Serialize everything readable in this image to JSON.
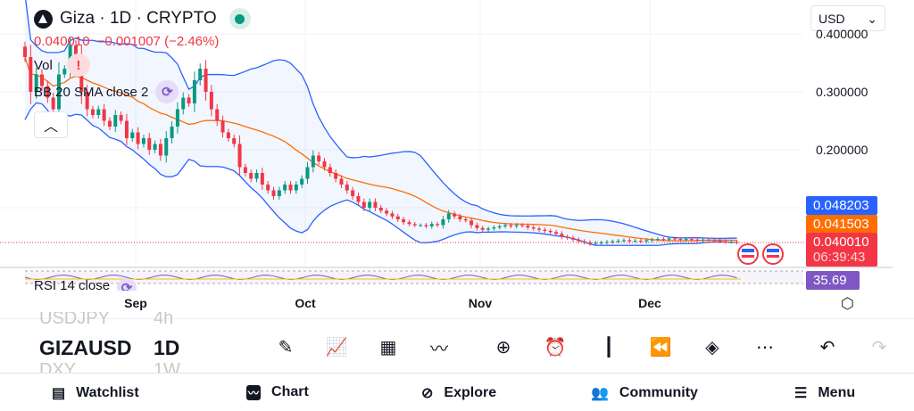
{
  "header": {
    "title": "Giza · 1D · CRYPTO",
    "status": "live",
    "currency": "USD"
  },
  "legend": {
    "price": "0.040010",
    "change": "−0.001007 (−2.46%)",
    "vol": "Vol",
    "bb": "BB 20 SMA close 2",
    "rsi": "RSI 14 close"
  },
  "price_axis": {
    "ticks": [
      "0.400000",
      "0.300000",
      "0.200000"
    ],
    "upper_band": "0.048203",
    "basis": "0.041503",
    "last": "0.040010",
    "countdown": "06:39:43",
    "rsi": "35.69"
  },
  "time_axis": [
    "Sep",
    "Oct",
    "Nov",
    "Dec"
  ],
  "colors": {
    "up": "#089981",
    "down": "#f23645",
    "band": "#2962ff",
    "basis": "#ff6d00",
    "rsi": "#7e57c2"
  },
  "symbol_picker": {
    "prev": [
      "USDJPY",
      "4h"
    ],
    "current": [
      "GIZAUSD",
      "1D"
    ],
    "next": [
      "DXY",
      "1W"
    ]
  },
  "toolbar": [
    "draw-icon",
    "indicators-icon",
    "templates-icon",
    "compare-icon",
    "add-icon",
    "alert-icon",
    "chart-type-icon",
    "replay-icon",
    "layers-icon",
    "more-icon",
    "undo-icon",
    "redo-icon"
  ],
  "nav": [
    {
      "label": "Watchlist",
      "icon": "watchlist-icon"
    },
    {
      "label": "Chart",
      "icon": "chart-icon"
    },
    {
      "label": "Explore",
      "icon": "compass-icon"
    },
    {
      "label": "Community",
      "icon": "community-icon"
    },
    {
      "label": "Menu",
      "icon": "menu-icon"
    }
  ],
  "chart_data": {
    "type": "candlestick",
    "scale": "linear",
    "ylim": [
      0,
      0.41
    ],
    "start": "Aug 12",
    "closes": [
      0.36,
      0.3,
      0.33,
      0.31,
      0.29,
      0.27,
      0.33,
      0.34,
      0.38,
      0.36,
      0.3,
      0.27,
      0.26,
      0.27,
      0.25,
      0.24,
      0.26,
      0.25,
      0.22,
      0.23,
      0.21,
      0.22,
      0.2,
      0.21,
      0.19,
      0.22,
      0.24,
      0.27,
      0.29,
      0.28,
      0.32,
      0.34,
      0.3,
      0.27,
      0.25,
      0.23,
      0.22,
      0.21,
      0.17,
      0.16,
      0.15,
      0.16,
      0.14,
      0.13,
      0.12,
      0.13,
      0.14,
      0.13,
      0.14,
      0.15,
      0.17,
      0.19,
      0.18,
      0.17,
      0.16,
      0.15,
      0.14,
      0.13,
      0.12,
      0.11,
      0.1,
      0.11,
      0.1,
      0.095,
      0.09,
      0.085,
      0.08,
      0.075,
      0.072,
      0.07,
      0.07,
      0.068,
      0.072,
      0.07,
      0.08,
      0.09,
      0.085,
      0.08,
      0.078,
      0.07,
      0.065,
      0.062,
      0.064,
      0.066,
      0.068,
      0.07,
      0.068,
      0.07,
      0.069,
      0.066,
      0.064,
      0.062,
      0.06,
      0.058,
      0.055,
      0.05,
      0.048,
      0.045,
      0.042,
      0.04,
      0.038,
      0.039,
      0.04,
      0.041,
      0.042,
      0.043,
      0.044,
      0.042,
      0.043,
      0.042,
      0.044,
      0.045,
      0.046,
      0.045,
      0.047,
      0.046,
      0.045,
      0.046,
      0.045,
      0.044,
      0.045,
      0.044,
      0.043,
      0.042,
      0.041,
      0.041,
      0.04
    ]
  }
}
